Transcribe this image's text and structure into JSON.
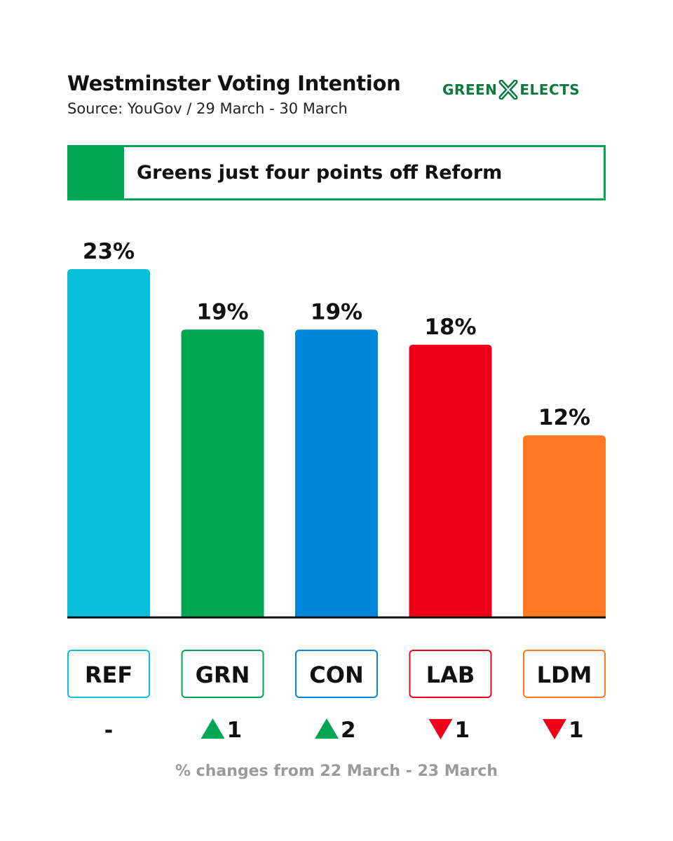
{
  "header": {
    "title": "Westminster Voting Intention",
    "subtitle": "Source: YouGov / 29 March - 30 March",
    "logo_left": "GREEN",
    "logo_right": "ELECTS",
    "logo_color": "#0b7a3e",
    "logo_icon": "cross-ballot-icon"
  },
  "headline": {
    "text": "Greens just four points off Reform",
    "accent": "#00a651"
  },
  "chart_data": {
    "type": "bar",
    "title": "Westminster Voting Intention",
    "categories": [
      "REF",
      "GRN",
      "CON",
      "LAB",
      "LDM"
    ],
    "values": [
      23,
      19,
      19,
      18,
      12
    ],
    "value_labels": [
      "23%",
      "19%",
      "19%",
      "18%",
      "12%"
    ],
    "colors": [
      "#0bbfda",
      "#00a651",
      "#0087dc",
      "#ee0018",
      "#ff7722"
    ],
    "changes": [
      {
        "direction": "none",
        "text": "-"
      },
      {
        "direction": "up",
        "text": "1"
      },
      {
        "direction": "up",
        "text": "2"
      },
      {
        "direction": "down",
        "text": "1"
      },
      {
        "direction": "down",
        "text": "1"
      }
    ],
    "up_color": "#00a651",
    "down_color": "#ee0018",
    "ylim": [
      0,
      23
    ],
    "grid": false,
    "legend": "none",
    "change_note": "% changes from 22 March - 23 March"
  }
}
